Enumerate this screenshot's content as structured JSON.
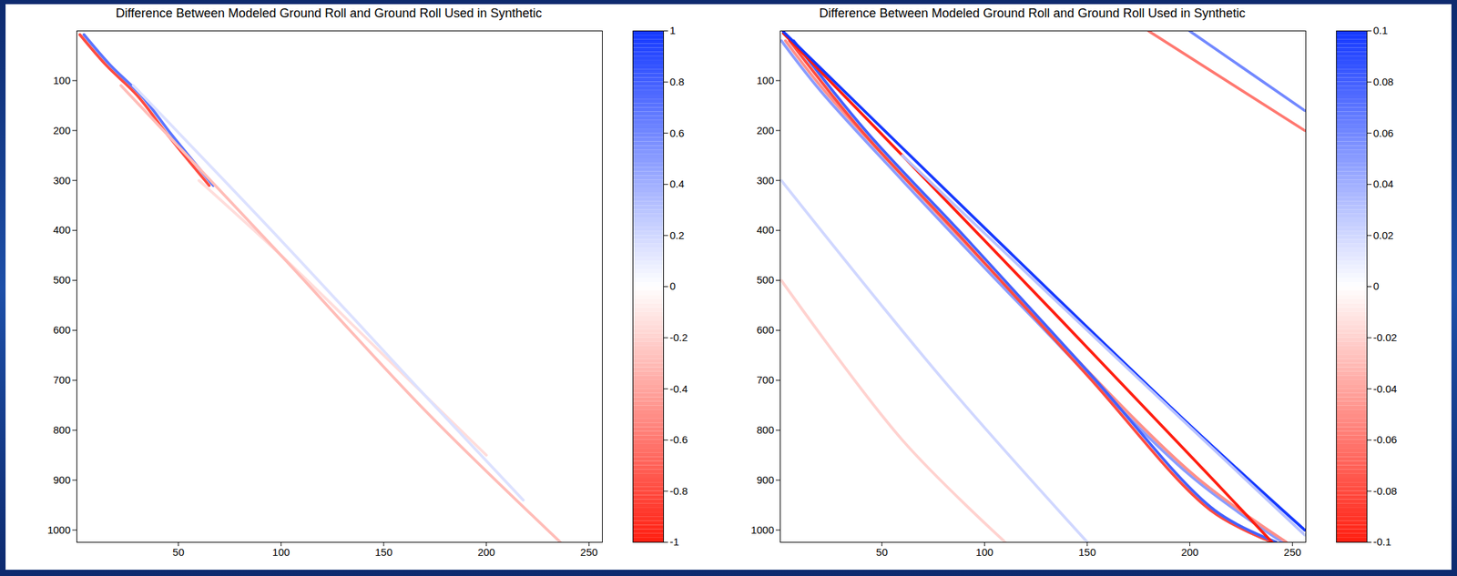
{
  "chart_data": [
    {
      "type": "line",
      "title": "Difference Between Modeled Ground Roll and Ground Roll Used in Synthetic",
      "xlim": [
        0.5,
        256.5
      ],
      "ylim": [
        0.5,
        1024.5
      ],
      "xticks": [
        50,
        100,
        150,
        200,
        250
      ],
      "yticks": [
        100,
        200,
        300,
        400,
        500,
        600,
        700,
        800,
        900,
        1000
      ],
      "color_range": [
        -1,
        1
      ],
      "color_ticks": [
        -1,
        -0.8,
        -0.6,
        -0.4,
        -0.2,
        0,
        0.2,
        0.4,
        0.6,
        0.8,
        1
      ],
      "series": [
        {
          "x": [
            2,
            15,
            30,
            45,
            65
          ],
          "values": [
            8,
            70,
            130,
            210,
            310
          ],
          "amplitude": -0.8
        },
        {
          "x": [
            4,
            17,
            32,
            47,
            67
          ],
          "values": [
            8,
            70,
            130,
            210,
            310
          ],
          "amplitude": 0.7
        },
        {
          "x": [
            60,
            100,
            150,
            200
          ],
          "values": [
            300,
            450,
            650,
            850
          ],
          "amplitude": -0.15
        },
        {
          "x": [
            22,
            100,
            170,
            236
          ],
          "values": [
            110,
            450,
            760,
            1024
          ],
          "amplitude": -0.3
        },
        {
          "x": [
            28,
            100,
            170,
            218
          ],
          "values": [
            110,
            420,
            730,
            940
          ],
          "amplitude": 0.15
        }
      ]
    },
    {
      "type": "line",
      "title": "Difference Between Modeled Ground Roll and Ground Roll Used in Synthetic",
      "xlim": [
        0.5,
        256.5
      ],
      "ylim": [
        0.5,
        1024.5
      ],
      "xticks": [
        50,
        100,
        150,
        200,
        250
      ],
      "yticks": [
        100,
        200,
        300,
        400,
        500,
        600,
        700,
        800,
        900,
        1000
      ],
      "color_range": [
        -0.1,
        0.1
      ],
      "color_ticks": [
        -0.1,
        -0.08,
        -0.06,
        -0.04,
        -0.02,
        0,
        0.02,
        0.04,
        0.06,
        0.08,
        0.1
      ],
      "series": [
        {
          "x": [
            1,
            20,
            60,
            120,
            200,
            245
          ],
          "values": [
            20,
            120,
            300,
            560,
            890,
            1024
          ],
          "amplitude": 0.05
        },
        {
          "x": [
            3,
            22,
            62,
            122,
            202,
            247
          ],
          "values": [
            20,
            120,
            300,
            560,
            890,
            1024
          ],
          "amplitude": -0.05
        },
        {
          "x": [
            5,
            40,
            90,
            150,
            210,
            240
          ],
          "values": [
            20,
            200,
            420,
            690,
            960,
            1024
          ],
          "amplitude": -0.08
        },
        {
          "x": [
            7,
            42,
            92,
            152,
            212,
            242
          ],
          "values": [
            20,
            200,
            420,
            690,
            960,
            1024
          ],
          "amplitude": 0.08
        },
        {
          "x": [
            2,
            100,
            200,
            240
          ],
          "values": [
            5,
            420,
            850,
            1024
          ],
          "amplitude": -0.1
        },
        {
          "x": [
            2,
            100,
            200,
            256
          ],
          "values": [
            2,
            395,
            790,
            1000
          ],
          "amplitude": 0.1
        },
        {
          "x": [
            60,
            150,
            256
          ],
          "values": [
            250,
            600,
            1010
          ],
          "amplitude": 0.03
        },
        {
          "x": [
            1,
            80,
            150
          ],
          "values": [
            300,
            700,
            1024
          ],
          "amplitude": 0.02
        },
        {
          "x": [
            1,
            60,
            110
          ],
          "values": [
            500,
            820,
            1024
          ],
          "amplitude": -0.02
        },
        {
          "x": [
            180,
            256
          ],
          "values": [
            1,
            200
          ],
          "amplitude": -0.06
        },
        {
          "x": [
            200,
            256
          ],
          "values": [
            1,
            160
          ],
          "amplitude": 0.06
        }
      ]
    }
  ]
}
